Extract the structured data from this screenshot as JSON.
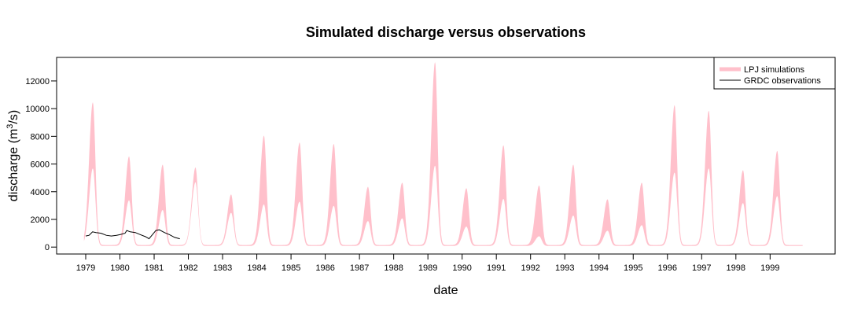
{
  "chart_data": {
    "type": "area",
    "title": "Simulated discharge versus observations",
    "xlabel": "date",
    "ylabel_main": "discharge (m",
    "ylabel_sup": "3",
    "ylabel_end": "/s)",
    "xlim": [
      1978.15,
      2000.9
    ],
    "ylim": [
      -500,
      13700
    ],
    "x_ticks": [
      "1979",
      "1980",
      "1981",
      "1982",
      "1983",
      "1984",
      "1985",
      "1986",
      "1987",
      "1988",
      "1989",
      "1990",
      "1991",
      "1992",
      "1993",
      "1994",
      "1995",
      "1996",
      "1997",
      "1998",
      "1999"
    ],
    "y_ticks": [
      "0",
      "2000",
      "4000",
      "6000",
      "8000",
      "10000",
      "12000"
    ],
    "grid": false,
    "legend_position": "top-right",
    "colors": {
      "simulation_band": "#FFC0CB",
      "observation_line": "#000000"
    },
    "series": [
      {
        "name": "LPJ simulations",
        "kind": "band",
        "peaks": [
          {
            "year": 1979,
            "peak_month": 2.5,
            "upper": 10300,
            "lower": 5600
          },
          {
            "year": 1980,
            "peak_month": 3.2,
            "upper": 6400,
            "lower": 3300
          },
          {
            "year": 1981,
            "peak_month": 3.0,
            "upper": 5800,
            "lower": 2600
          },
          {
            "year": 1982,
            "peak_month": 2.5,
            "upper": 5600,
            "lower": 4600
          },
          {
            "year": 1983,
            "peak_month": 3.0,
            "upper": 3650,
            "lower": 2400
          },
          {
            "year": 1984,
            "peak_month": 2.5,
            "upper": 7900,
            "lower": 3000
          },
          {
            "year": 1985,
            "peak_month": 3.0,
            "upper": 7400,
            "lower": 3200
          },
          {
            "year": 1986,
            "peak_month": 3.0,
            "upper": 7300,
            "lower": 2900
          },
          {
            "year": 1987,
            "peak_month": 3.0,
            "upper": 4200,
            "lower": 1800
          },
          {
            "year": 1988,
            "peak_month": 3.0,
            "upper": 4500,
            "lower": 2000
          },
          {
            "year": 1989,
            "peak_month": 2.5,
            "upper": 13200,
            "lower": 5800
          },
          {
            "year": 1990,
            "peak_month": 1.5,
            "upper": 4100,
            "lower": 1400
          },
          {
            "year": 1991,
            "peak_month": 2.5,
            "upper": 7200,
            "lower": 3400
          },
          {
            "year": 1992,
            "peak_month": 3.0,
            "upper": 4300,
            "lower": 700
          },
          {
            "year": 1993,
            "peak_month": 3.0,
            "upper": 5800,
            "lower": 2200
          },
          {
            "year": 1994,
            "peak_month": 3.0,
            "upper": 3300,
            "lower": 1100
          },
          {
            "year": 1995,
            "peak_month": 3.0,
            "upper": 4500,
            "lower": 1500
          },
          {
            "year": 1996,
            "peak_month": 2.5,
            "upper": 10100,
            "lower": 5300
          },
          {
            "year": 1997,
            "peak_month": 2.5,
            "upper": 9700,
            "lower": 5600
          },
          {
            "year": 1998,
            "peak_month": 2.5,
            "upper": 5400,
            "lower": 3100
          },
          {
            "year": 1999,
            "peak_month": 2.5,
            "upper": 6800,
            "lower": 3600
          }
        ]
      },
      {
        "name": "GRDC observations",
        "kind": "line",
        "x": [
          1979.0,
          1979.1,
          1979.2,
          1979.3,
          1979.45,
          1979.6,
          1979.75,
          1979.9,
          1980.0,
          1980.15,
          1980.2,
          1980.3,
          1980.45,
          1980.6,
          1980.75,
          1980.85,
          1980.95,
          1981.05,
          1981.15,
          1981.3,
          1981.45,
          1981.6,
          1981.75
        ],
        "y": [
          800,
          850,
          1100,
          1050,
          1000,
          850,
          800,
          850,
          900,
          1000,
          1200,
          1100,
          1050,
          900,
          750,
          600,
          900,
          1200,
          1250,
          1050,
          900,
          700,
          600
        ]
      }
    ]
  }
}
